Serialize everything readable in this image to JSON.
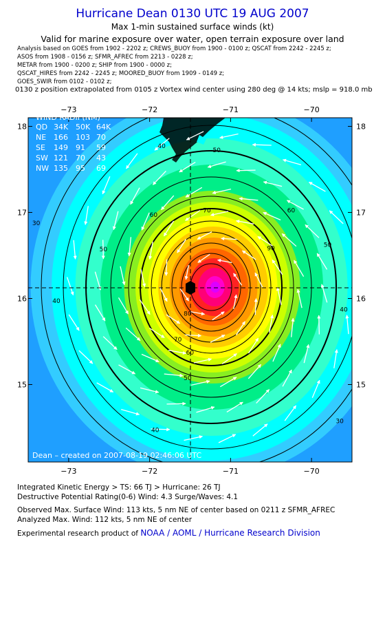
{
  "header": {
    "title": "Hurricane Dean 0130 UTC 19 AUG 2007",
    "subtitle1": "Max 1-min sustained surface winds (kt)",
    "subtitle2": "Valid for marine exposure over water, open terrain exposure over land"
  },
  "analysis_lines": [
    "Analysis based on  GOES from 1902 - 2202 z;  CREWS_BUOY from 1900 - 0100 z;  QSCAT from 2242 - 2245 z;",
    "ASOS from 1908 - 0156 z;  SFMR_AFREC from 2213 - 0228 z;",
    "METAR from 1900 - 0200 z;  SHIP from 1900 - 0000 z;",
    "QSCAT_HIRES from 2242 - 2245 z;  MOORED_BUOY from 1909 - 0149 z;",
    "GOES_SWIR from 0102 - 0102 z;"
  ],
  "position_note": "0130 z position extrapolated from 0105 z Vortex wind center using 280 deg @ 14 kts; mslp = 918.0 mb",
  "chart_data": {
    "type": "heatmap",
    "xlim": [
      -73.5,
      -69.5
    ],
    "ylim": [
      14.1,
      18.1
    ],
    "x_ticks": [
      -73,
      -72,
      -71,
      -70
    ],
    "y_ticks": [
      15,
      16,
      17,
      18
    ],
    "x_tick_labels": [
      "−73",
      "−72",
      "−71",
      "−70"
    ],
    "y_tick_labels": [
      "15",
      "16",
      "17",
      "18"
    ],
    "center": {
      "lon": -71.3,
      "lat": 16.1
    },
    "contour_levels": [
      30,
      40,
      50,
      60,
      70,
      80,
      90,
      100,
      110
    ],
    "contour_labels": [
      {
        "text": "30",
        "lon": -73.45,
        "lat": 16.85
      },
      {
        "text": "40",
        "lon": -71.9,
        "lat": 17.75
      },
      {
        "text": "40",
        "lon": -73.2,
        "lat": 15.95
      },
      {
        "text": "40",
        "lon": -69.65,
        "lat": 15.85
      },
      {
        "text": "40",
        "lon": -71.98,
        "lat": 14.45
      },
      {
        "text": "50",
        "lon": -71.22,
        "lat": 17.7
      },
      {
        "text": "50",
        "lon": -72.62,
        "lat": 16.55
      },
      {
        "text": "50",
        "lon": -69.85,
        "lat": 16.6
      },
      {
        "text": "50",
        "lon": -71.58,
        "lat": 15.05
      },
      {
        "text": "60",
        "lon": -72.0,
        "lat": 16.95
      },
      {
        "text": "60",
        "lon": -70.3,
        "lat": 17.0
      },
      {
        "text": "60",
        "lon": -71.55,
        "lat": 15.35
      },
      {
        "text": "70",
        "lon": -71.34,
        "lat": 17.0
      },
      {
        "text": "70",
        "lon": -71.7,
        "lat": 15.5
      },
      {
        "text": "80",
        "lon": -71.58,
        "lat": 15.8
      },
      {
        "text": "90",
        "lon": -70.55,
        "lat": 16.56
      },
      {
        "text": "30",
        "lon": -69.7,
        "lat": 14.55
      }
    ],
    "legend_table": {
      "title": "WIND RADII (NM)",
      "headers": [
        "QD",
        "34K",
        "50K",
        "64K"
      ],
      "rows": [
        [
          "NE",
          "166",
          "103",
          "70"
        ],
        [
          "SE",
          "149",
          "91",
          "59"
        ],
        [
          "SW",
          "121",
          "70",
          "43"
        ],
        [
          "NW",
          "135",
          "95",
          "69"
        ]
      ]
    },
    "credit": "Dean – created on 2007-08-19 02:46:06 UTC"
  },
  "colors": {
    "bands": [
      "#1f9fff",
      "#33ccff",
      "#00ffff",
      "#33ffcc",
      "#00ee88",
      "#88ee22",
      "#ccff00",
      "#ffff00",
      "#ffcc00",
      "#ff9900",
      "#ff6600",
      "#ff2222",
      "#ff0077",
      "#ff00cc",
      "#dd00ff"
    ]
  },
  "footer": {
    "ike": "Integrated Kinetic Energy > TS: 66 TJ   > Hurricane: 26 TJ",
    "dpr": "Destructive Potential Rating(0-6)   Wind: 4.3 Surge/Waves: 4.1",
    "obs": "Observed Max. Surface Wind: 113 kts, 5 nm NE of center based on 0211 z SFMR_AFREC",
    "analyzed": "Analyzed Max. Wind: 112 kts, 5 nm NE of center",
    "credit_prefix": "Experimental research product of ",
    "credit_org": "NOAA / AOML / Hurricane Research Division"
  }
}
